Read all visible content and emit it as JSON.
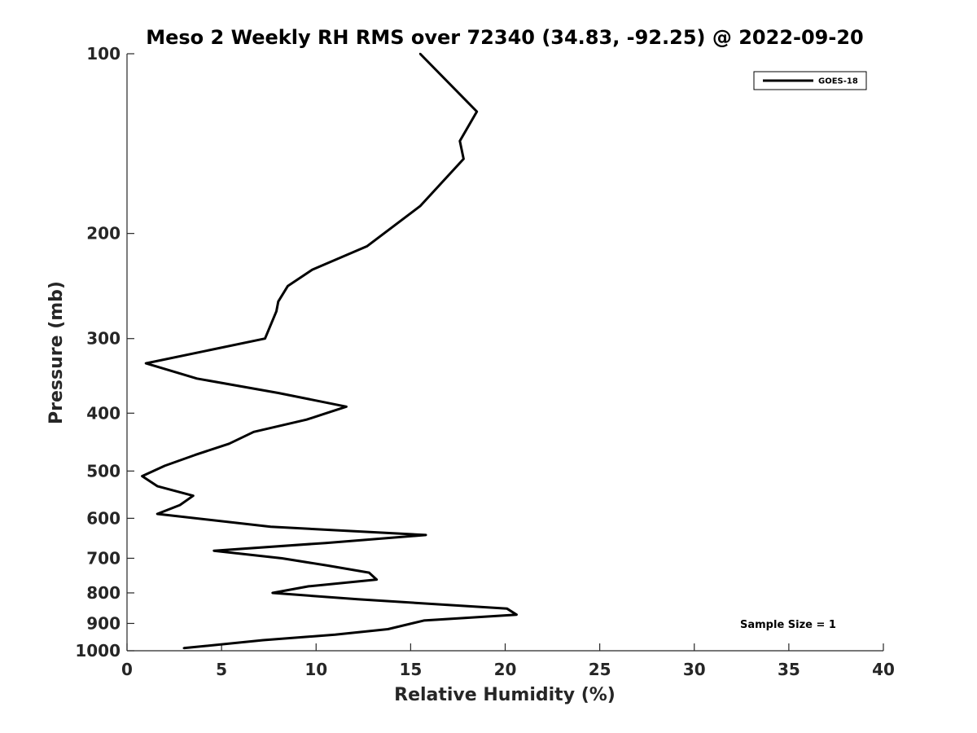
{
  "chart_data": {
    "type": "line",
    "title": "Meso 2 Weekly RH RMS over 72340 (34.83, -92.25) @ 2022-09-20",
    "xlabel": "Relative Humidity (%)",
    "ylabel": "Pressure (mb)",
    "xlim": [
      0,
      40
    ],
    "ylim": [
      100,
      1000
    ],
    "yscale": "log",
    "yreversed": true,
    "grid": false,
    "legend_position": "top-right",
    "xticks": [
      0,
      5,
      10,
      15,
      20,
      25,
      30,
      35,
      40
    ],
    "xtick_labels": [
      "0",
      "5",
      "10",
      "15",
      "20",
      "25",
      "30",
      "35",
      "40"
    ],
    "yticks": [
      100,
      200,
      300,
      400,
      500,
      600,
      700,
      800,
      900,
      1000
    ],
    "ytick_labels": [
      "100",
      "200",
      "300",
      "400",
      "500",
      "600",
      "700",
      "800",
      "900",
      "1000"
    ],
    "series": [
      {
        "name": "GOES-18",
        "x": [
          15.5,
          18.5,
          17.6,
          17.8,
          15.5,
          12.7,
          9.8,
          8.5,
          8.0,
          7.9,
          7.3,
          1.0,
          3.7,
          8.0,
          11.6,
          9.5,
          6.7,
          5.4,
          3.6,
          2.0,
          0.8,
          1.6,
          3.5,
          2.8,
          1.6,
          7.6,
          15.8,
          10.5,
          4.6,
          8.2,
          10.6,
          12.8,
          13.2,
          9.6,
          7.7,
          12.2,
          20.1,
          20.6,
          15.7,
          13.8,
          11.0,
          7.2,
          3.0
        ],
        "y": [
          100,
          125,
          140,
          150,
          180,
          210,
          230,
          245,
          260,
          270,
          300,
          330,
          350,
          370,
          390,
          410,
          430,
          450,
          470,
          490,
          510,
          530,
          550,
          570,
          590,
          620,
          640,
          660,
          680,
          700,
          720,
          740,
          760,
          780,
          800,
          820,
          850,
          870,
          890,
          920,
          940,
          960,
          990
        ]
      }
    ],
    "annotations": [
      "Sample Size = 1"
    ]
  },
  "colors": {
    "line": "#000000",
    "axis": "#262626",
    "text": "#262626",
    "background": "#ffffff"
  }
}
